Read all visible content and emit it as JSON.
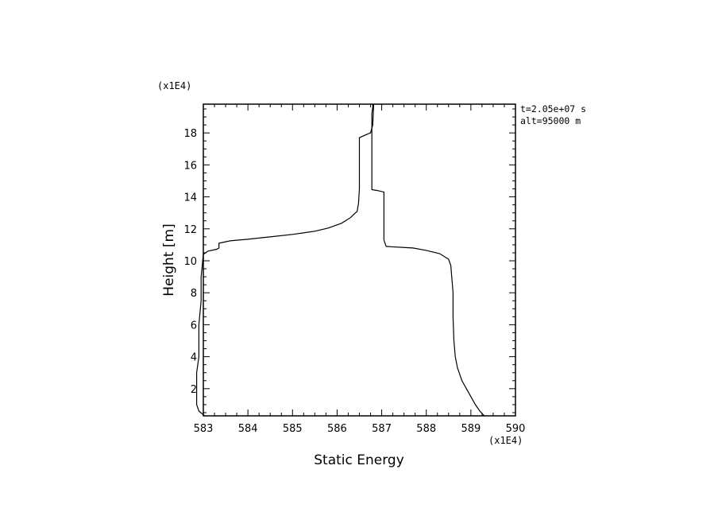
{
  "chart_data": {
    "type": "line",
    "xlabel": "Static Energy",
    "ylabel": "Height [m]",
    "x_multiplier_label": "(x1E4)",
    "y_multiplier_label": "(x1E4)",
    "xlim": [
      583,
      590
    ],
    "ylim": [
      0.3,
      19.8
    ],
    "x_ticks": [
      583,
      584,
      585,
      586,
      587,
      588,
      589,
      590
    ],
    "x_tick_labels": [
      "583",
      "584",
      "585",
      "586",
      "587",
      "588",
      "589",
      "590"
    ],
    "y_ticks": [
      2,
      4,
      6,
      8,
      10,
      12,
      14,
      16,
      18
    ],
    "y_tick_labels": [
      "2",
      "4",
      "6",
      "8",
      "10",
      "12",
      "14",
      "16",
      "18"
    ],
    "grid": false,
    "annotations": [
      "t=2.05e+07 s",
      "alt=95000 m"
    ],
    "series": [
      {
        "line_color": "#000000",
        "x": [
          583.03,
          582.9,
          582.85,
          582.85,
          582.85,
          582.9,
          582.9,
          582.95,
          582.95,
          583.0,
          583.1,
          583.3,
          583.35,
          583.35,
          583.6,
          584.0,
          584.5,
          585.0,
          585.5,
          585.8,
          586.1,
          586.3,
          586.45,
          586.48,
          586.5,
          586.5,
          586.5,
          586.5,
          586.7,
          586.75,
          586.8,
          586.82,
          586.8,
          586.8,
          586.78,
          586.78
        ],
        "y": [
          0.3,
          0.6,
          1.0,
          2.0,
          3.0,
          4.0,
          6.0,
          7.5,
          9.0,
          10.4,
          10.6,
          10.72,
          10.8,
          11.1,
          11.25,
          11.35,
          11.5,
          11.65,
          11.85,
          12.05,
          12.35,
          12.7,
          13.1,
          13.6,
          14.5,
          15.5,
          16.5,
          17.7,
          17.95,
          18.0,
          18.5,
          19.8,
          19.8,
          19.6,
          19.2,
          18.5
        ]
      },
      {
        "line_color": "#000000",
        "x": [
          586.78,
          586.78,
          586.78,
          586.9,
          587.05,
          587.05,
          587.05,
          587.1,
          587.2,
          587.7,
          588.0,
          588.3,
          588.5,
          588.55,
          588.6,
          588.6,
          588.62,
          588.65,
          588.7,
          588.8,
          588.9,
          589.0,
          589.1,
          589.2,
          589.3
        ],
        "y": [
          18.5,
          15.0,
          14.45,
          14.4,
          14.3,
          13.0,
          11.3,
          10.9,
          10.88,
          10.8,
          10.65,
          10.45,
          10.1,
          9.7,
          8.0,
          6.5,
          5.0,
          4.0,
          3.3,
          2.5,
          2.0,
          1.5,
          1.0,
          0.6,
          0.3
        ]
      }
    ]
  }
}
